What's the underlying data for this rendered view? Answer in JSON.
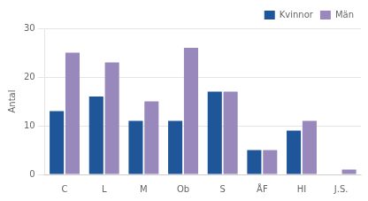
{
  "chart_data": {
    "type": "bar",
    "categories": [
      "C",
      "L",
      "M",
      "Ob",
      "S",
      "ÅF",
      "HI",
      "J.S."
    ],
    "series": [
      {
        "name": "Kvinnor",
        "color": "#1F5599",
        "values": [
          13,
          16,
          11,
          11,
          17,
          5,
          9,
          0
        ]
      },
      {
        "name": "Män",
        "color": "#9988BB",
        "values": [
          25,
          23,
          15,
          26,
          17,
          5,
          11,
          1
        ]
      }
    ],
    "ylabel": "Antal",
    "ylim": [
      0,
      30
    ],
    "yticks": [
      0,
      10,
      20,
      30
    ],
    "grid": "y",
    "legend": "upper right"
  }
}
